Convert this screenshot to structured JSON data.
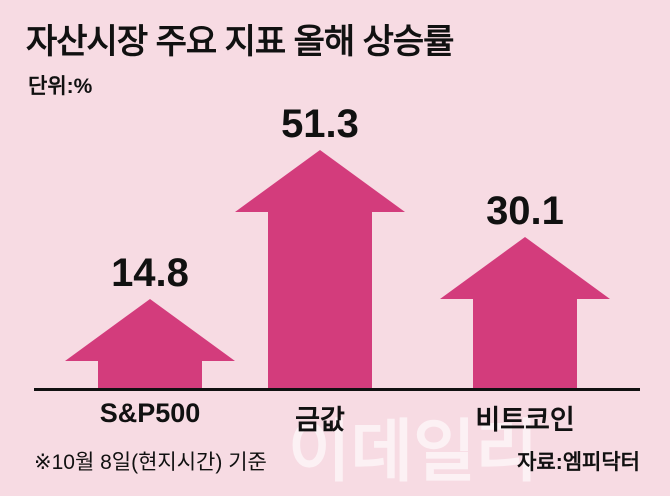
{
  "title": "자산시장 주요 지표 올해 상승률",
  "unit_label": "단위:%",
  "footnote": "※10월 8일(현지시간) 기준",
  "source": "자료:엠피닥터",
  "watermark": "이데일리",
  "colors": {
    "background": "#f7dbe3",
    "arrow": "#d33c7c",
    "text": "#111111",
    "axis": "#111111"
  },
  "chart_data": {
    "type": "bar",
    "bar_style": "up-arrow",
    "categories": [
      "S&P500",
      "금값",
      "비트코인"
    ],
    "values": [
      14.8,
      51.3,
      30.1
    ],
    "title": "자산시장 주요 지표 올해 상승률",
    "xlabel": "",
    "ylabel": "",
    "unit": "%",
    "ylim": [
      0,
      55
    ],
    "grid": false,
    "legend": "none",
    "annotations": [
      "※10월 8일(현지시간) 기준",
      "자료:엠피닥터"
    ]
  }
}
